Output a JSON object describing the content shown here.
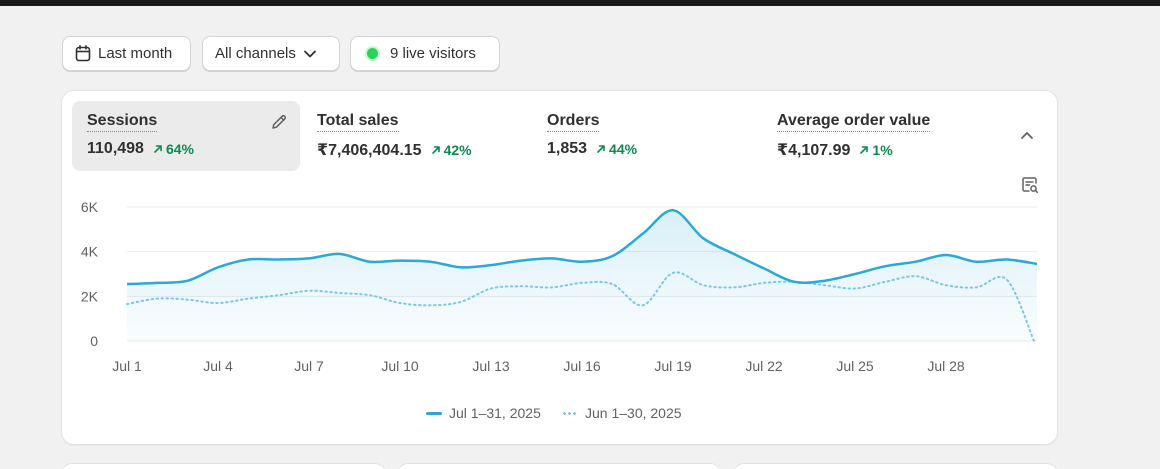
{
  "filters": {
    "date_range": "Last month",
    "channel": "All channels",
    "live_visitors": "9 live visitors"
  },
  "metrics": [
    {
      "label": "Sessions",
      "value": "110,498",
      "change": "64%",
      "active": true
    },
    {
      "label": "Total sales",
      "value": "₹7,406,404.15",
      "change": "42%"
    },
    {
      "label": "Orders",
      "value": "1,853",
      "change": "44%"
    },
    {
      "label": "Average order value",
      "value": "₹4,107.99",
      "change": "1%"
    }
  ],
  "icons": {
    "edit": "pencil-icon",
    "collapse": "chevron-up-icon",
    "report": "report-search-icon",
    "calendar": "calendar-icon",
    "dropdown": "chevron-down-icon"
  },
  "colors": {
    "current_series": "#2aa8d8",
    "previous_series": "#7cc7e3",
    "positive_change": "#0c8a52",
    "live_dot": "#29d35a"
  },
  "legend": {
    "current": "Jul 1–31, 2025",
    "previous": "Jun 1–30, 2025"
  },
  "chart_data": {
    "type": "line",
    "x_tick_labels": [
      "Jul 1",
      "Jul 4",
      "Jul 7",
      "Jul 10",
      "Jul 13",
      "Jul 16",
      "Jul 19",
      "Jul 22",
      "Jul 25",
      "Jul 28"
    ],
    "y_tick_labels": [
      "0",
      "2K",
      "4K",
      "6K"
    ],
    "ylim": [
      0,
      6000
    ],
    "grid": true,
    "legend_position": "bottom",
    "series": [
      {
        "name": "Jul 1–31, 2025",
        "style": "solid",
        "x": [
          1,
          2,
          3,
          4,
          5,
          6,
          7,
          8,
          9,
          10,
          11,
          12,
          13,
          14,
          15,
          16,
          17,
          18,
          19,
          20,
          21,
          22,
          23,
          24,
          25,
          26,
          27,
          28,
          29,
          30,
          31
        ],
        "values": [
          2550,
          2600,
          2700,
          3300,
          3650,
          3650,
          3700,
          3900,
          3550,
          3600,
          3550,
          3300,
          3400,
          3600,
          3700,
          3550,
          3800,
          4800,
          5850,
          4600,
          3900,
          3250,
          2650,
          2700,
          3000,
          3350,
          3550,
          3850,
          3550,
          3650,
          3450
        ]
      },
      {
        "name": "Jun 1–30, 2025",
        "style": "dotted",
        "x": [
          1,
          2,
          3,
          4,
          5,
          6,
          7,
          8,
          9,
          10,
          11,
          12,
          13,
          14,
          15,
          16,
          17,
          18,
          19,
          20,
          21,
          22,
          23,
          24,
          25,
          26,
          27,
          28,
          29,
          30
        ],
        "values": [
          1650,
          1900,
          1850,
          1700,
          1900,
          2050,
          2250,
          2150,
          2050,
          1700,
          1600,
          1750,
          2350,
          2450,
          2400,
          2600,
          2550,
          1600,
          3050,
          2500,
          2400,
          2600,
          2650,
          2500,
          2350,
          2650,
          2900,
          2500,
          2400,
          2750
        ]
      }
    ]
  }
}
